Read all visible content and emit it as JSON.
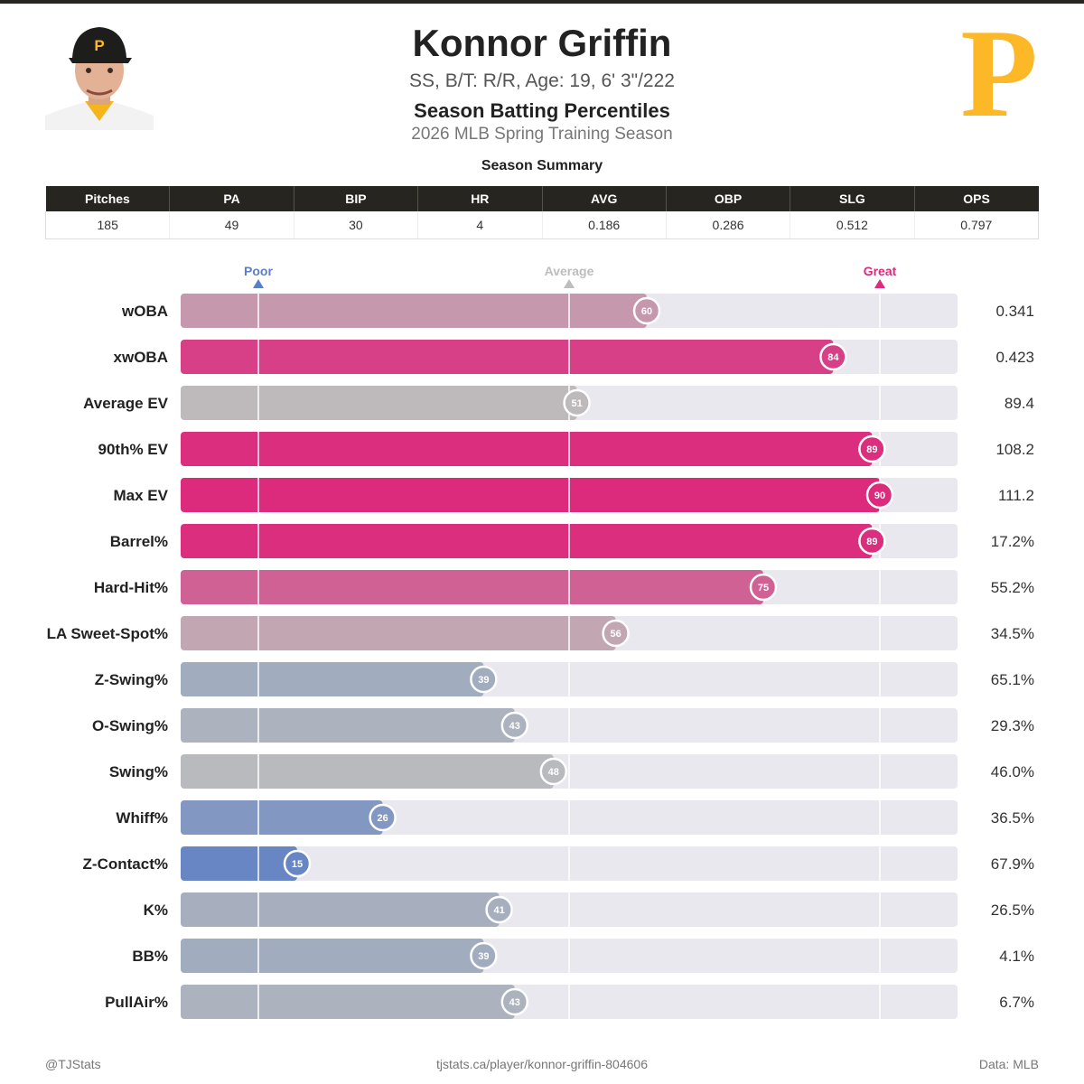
{
  "player": {
    "name": "Konnor Griffin",
    "bio": "SS, B/T: R/R, Age: 19, 6' 3\"/222",
    "section_title": "Season Batting Percentiles",
    "season": "2026 MLB Spring Training Season"
  },
  "team_logo_letter": "P",
  "summary": {
    "title": "Season Summary",
    "headers": [
      "Pitches",
      "PA",
      "BIP",
      "HR",
      "AVG",
      "OBP",
      "SLG",
      "OPS"
    ],
    "values": [
      "185",
      "49",
      "30",
      "4",
      "0.186",
      "0.286",
      "0.512",
      "0.797"
    ]
  },
  "colors": {
    "header_bg": "#27251f",
    "poor": "#5b7ec4",
    "average": "#bdbdbd",
    "great": "#dc2a7c",
    "track": "#e8e8ee",
    "logo_gold": "#fdb827"
  },
  "chart_data": {
    "type": "bar",
    "orientation": "horizontal",
    "title": "Season Batting Percentiles",
    "xlim": [
      0,
      100
    ],
    "markers": [
      {
        "label": "Poor",
        "value": 10
      },
      {
        "label": "Average",
        "value": 50
      },
      {
        "label": "Great",
        "value": 90
      }
    ],
    "categories": [
      "wOBA",
      "xwOBA",
      "Average EV",
      "90th% EV",
      "Max EV",
      "Barrel%",
      "Hard-Hit%",
      "LA Sweet-Spot%",
      "Z-Swing%",
      "O-Swing%",
      "Swing%",
      "Whiff%",
      "Z-Contact%",
      "K%",
      "BB%",
      "PullAir%"
    ],
    "percentiles": [
      60,
      84,
      51,
      89,
      90,
      89,
      75,
      56,
      39,
      43,
      48,
      26,
      15,
      41,
      39,
      43
    ],
    "stat_values": [
      "0.341",
      "0.423",
      "89.4",
      "108.2",
      "111.2",
      "17.2%",
      "55.2%",
      "34.5%",
      "65.1%",
      "29.3%",
      "46.0%",
      "36.5%",
      "67.9%",
      "26.5%",
      "4.1%",
      "6.7%"
    ]
  },
  "footer": {
    "left": "@TJStats",
    "center": "tjstats.ca/player/konnor-griffin-804606",
    "right": "Data: MLB"
  }
}
